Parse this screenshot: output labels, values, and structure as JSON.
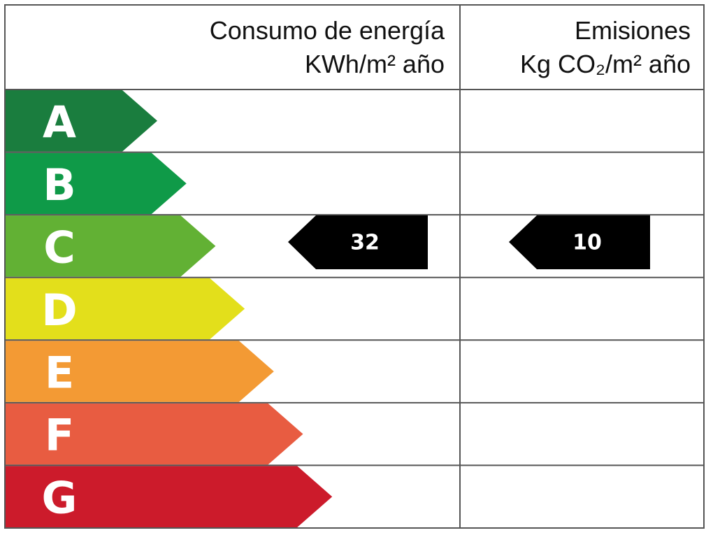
{
  "header": {
    "consumption": {
      "title": "Consumo de energía",
      "unit": "KWh/m² año"
    },
    "emissions": {
      "title": "Emisiones",
      "unit": "Kg CO₂/m² año"
    }
  },
  "classes": [
    {
      "letter": "A",
      "color": "#1a7d3e"
    },
    {
      "letter": "B",
      "color": "#0f9a48"
    },
    {
      "letter": "C",
      "color": "#62b134"
    },
    {
      "letter": "D",
      "color": "#e3df1b"
    },
    {
      "letter": "E",
      "color": "#f39a34"
    },
    {
      "letter": "F",
      "color": "#e85c41"
    },
    {
      "letter": "G",
      "color": "#cc1b2b"
    }
  ],
  "consumption_value": "32",
  "emissions_value": "10"
}
